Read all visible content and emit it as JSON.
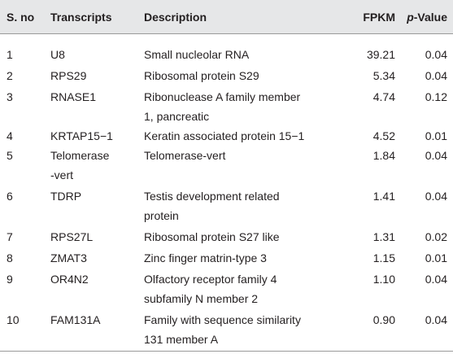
{
  "table": {
    "header": [
      "S. no",
      "Transcripts",
      "Description",
      "FPKM",
      "p-Value"
    ],
    "rows": [
      [
        "1",
        "U8",
        "Small nucleolar RNA",
        "39.21",
        "0.04"
      ],
      [
        "2",
        "RPS29",
        "Ribosomal protein S29",
        "5.34",
        "0.04"
      ],
      [
        "3",
        "RNASE1",
        "Ribonuclease A family member\n1, pancreatic",
        "4.74",
        "0.12"
      ],
      [
        "4",
        "KRTAP15−1",
        "Keratin associated protein 15−1",
        "4.52",
        "0.01"
      ],
      [
        "5",
        "Telomerase\n-vert",
        "Telomerase-vert",
        "1.84",
        "0.04"
      ],
      [
        "6",
        "TDRP",
        "Testis development related\nprotein",
        "1.41",
        "0.04"
      ],
      [
        "7",
        "RPS27L",
        "Ribosomal protein S27 like",
        "1.31",
        "0.02"
      ],
      [
        "8",
        "ZMAT3",
        "Zinc finger matrin-type 3",
        "1.15",
        "0.01"
      ],
      [
        "9",
        "OR4N2",
        "Olfactory receptor family 4\nsubfamily N member 2",
        "1.10",
        "0.04"
      ],
      [
        "10",
        "FAM131A",
        "Family with sequence similarity\n131 member A",
        "0.90",
        "0.04"
      ]
    ]
  }
}
